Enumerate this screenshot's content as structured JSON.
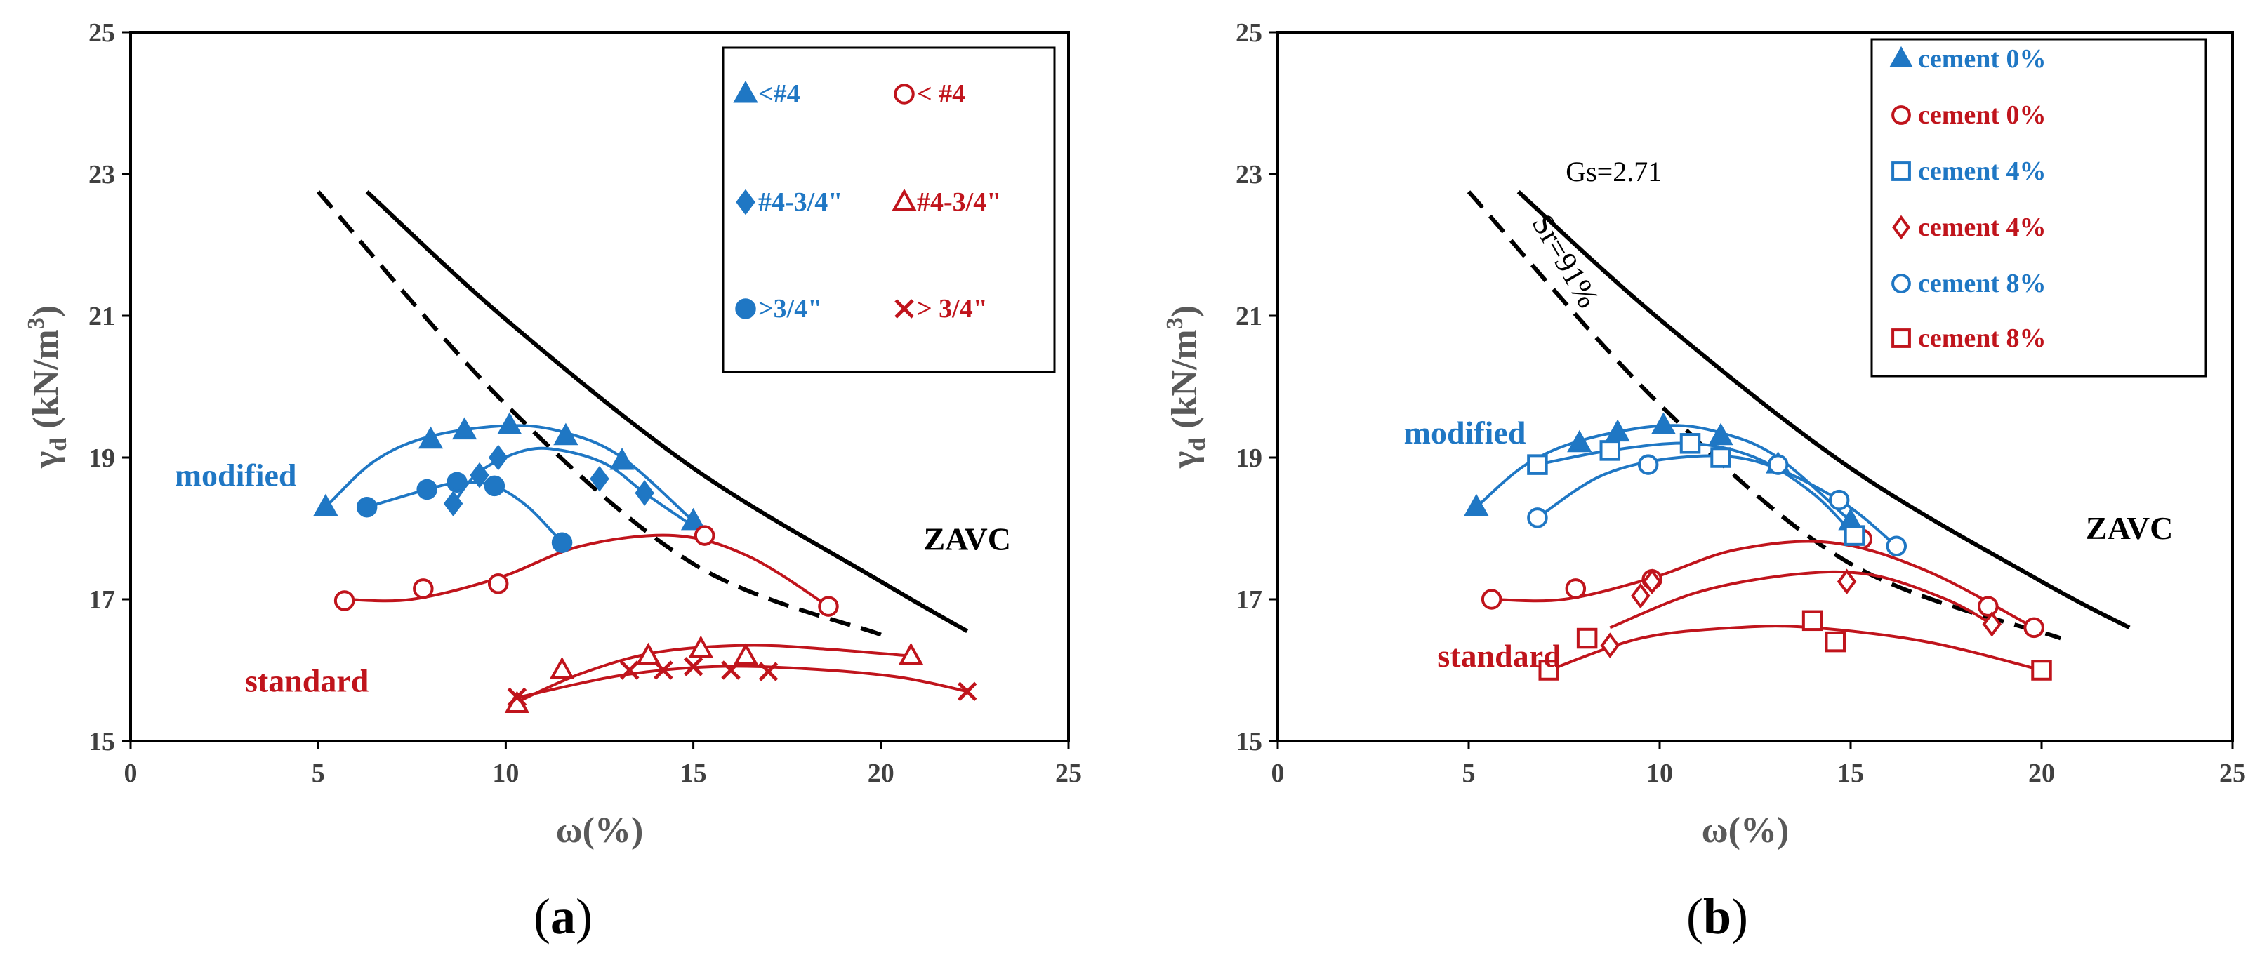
{
  "chart_data": [
    {
      "id": "a",
      "type": "scatter",
      "panel_label": "(a)",
      "panel_letter": "a",
      "xlabel": "ω(%)",
      "ylabel": "γd (kN/m³)",
      "ylabel_main": "γ",
      "ylabel_sub": "d",
      "ylabel_rest": " (kN/m",
      "ylabel_sup": "3",
      "ylabel_close": ")",
      "xlim": [
        0,
        25
      ],
      "ylim": [
        15,
        25
      ],
      "xticks": [
        0,
        5,
        10,
        15,
        20,
        25
      ],
      "yticks": [
        15,
        17,
        19,
        21,
        23,
        25
      ],
      "grid": false,
      "legend_position": "top-right",
      "annotations": [
        {
          "text": "modified",
          "x": 2.8,
          "y": 18.6,
          "color": "#1f77c4"
        },
        {
          "text": "standard",
          "x": 4.7,
          "y": 15.7,
          "color": "#c0141c"
        },
        {
          "text": "ZAVC",
          "x": 22.3,
          "y": 17.7,
          "color": "#000000"
        }
      ],
      "reference_lines": [
        {
          "name": "ZAVC",
          "style": "solid",
          "points": [
            [
              6.3,
              22.75
            ],
            [
              10,
              20.95
            ],
            [
              15,
              18.85
            ],
            [
              20,
              17.25
            ],
            [
              22.3,
              16.55
            ]
          ]
        },
        {
          "name": "Sr",
          "style": "dashed",
          "points": [
            [
              5.0,
              22.75
            ],
            [
              10,
              19.75
            ],
            [
              15,
              17.5
            ],
            [
              20.0,
              16.5
            ]
          ]
        }
      ],
      "series": [
        {
          "name": "<#4",
          "label": "<#4",
          "marker": "triangle-filled",
          "color": "#1f77c4",
          "points": [
            [
              5.2,
              18.3
            ],
            [
              8.0,
              19.25
            ],
            [
              8.9,
              19.38
            ],
            [
              10.1,
              19.45
            ],
            [
              11.6,
              19.3
            ],
            [
              13.1,
              18.95
            ],
            [
              15.0,
              18.1
            ]
          ],
          "curve": [
            [
              5.2,
              18.3
            ],
            [
              6.5,
              18.95
            ],
            [
              8.0,
              19.3
            ],
            [
              10.1,
              19.45
            ],
            [
              11.6,
              19.35
            ],
            [
              13.1,
              19.0
            ],
            [
              15.0,
              18.1
            ]
          ]
        },
        {
          "name": "#4-3/4\"",
          "label": "#4-3/4\"",
          "marker": "diamond-filled",
          "color": "#1f77c4",
          "points": [
            [
              8.6,
              18.35
            ],
            [
              9.3,
              18.75
            ],
            [
              9.8,
              19.0
            ],
            [
              12.5,
              18.7
            ],
            [
              13.7,
              18.5
            ]
          ],
          "curve": [
            [
              8.6,
              18.35
            ],
            [
              9.3,
              18.8
            ],
            [
              10.5,
              19.1
            ],
            [
              11.5,
              19.1
            ],
            [
              12.7,
              18.9
            ],
            [
              13.7,
              18.5
            ],
            [
              14.8,
              18.1
            ]
          ]
        },
        {
          "name": ">3/4\"",
          "label": ">3/4\"",
          "marker": "circle-filled",
          "color": "#1f77c4",
          "points": [
            [
              6.3,
              18.3
            ],
            [
              7.9,
              18.55
            ],
            [
              8.7,
              18.65
            ],
            [
              9.7,
              18.6
            ],
            [
              11.5,
              17.8
            ]
          ],
          "curve": [
            [
              6.3,
              18.3
            ],
            [
              7.9,
              18.55
            ],
            [
              8.8,
              18.65
            ],
            [
              9.7,
              18.6
            ],
            [
              10.6,
              18.3
            ],
            [
              11.5,
              17.8
            ]
          ]
        },
        {
          "name": "< #4",
          "label": "< #4",
          "marker": "circle-open",
          "color": "#c0141c",
          "points": [
            [
              5.7,
              16.98
            ],
            [
              7.8,
              17.15
            ],
            [
              9.8,
              17.22
            ],
            [
              15.3,
              17.9
            ],
            [
              18.6,
              16.9
            ]
          ],
          "curve": [
            [
              5.7,
              17.0
            ],
            [
              7.5,
              17.0
            ],
            [
              9.8,
              17.3
            ],
            [
              12.0,
              17.75
            ],
            [
              14.5,
              17.9
            ],
            [
              16.5,
              17.6
            ],
            [
              18.6,
              16.9
            ]
          ]
        },
        {
          "name": "#4-3/4\"",
          "label": "#4-3/4\"",
          "marker": "triangle-open",
          "color": "#c0141c",
          "points": [
            [
              10.3,
              15.52
            ],
            [
              11.5,
              16.0
            ],
            [
              13.8,
              16.2
            ],
            [
              15.2,
              16.3
            ],
            [
              16.4,
              16.2
            ],
            [
              20.8,
              16.2
            ]
          ],
          "curve": [
            [
              10.3,
              15.55
            ],
            [
              12.0,
              15.95
            ],
            [
              14.0,
              16.25
            ],
            [
              16.4,
              16.35
            ],
            [
              18.5,
              16.3
            ],
            [
              20.8,
              16.2
            ]
          ]
        },
        {
          "name": "> 3/4\"",
          "label": "> 3/4\"",
          "marker": "x",
          "color": "#c0141c",
          "points": [
            [
              10.3,
              15.62
            ],
            [
              13.3,
              16.0
            ],
            [
              14.2,
              16.0
            ],
            [
              15.0,
              16.05
            ],
            [
              16.0,
              16.0
            ],
            [
              17.0,
              15.98
            ],
            [
              22.3,
              15.7
            ]
          ],
          "curve": [
            [
              10.2,
              15.6
            ],
            [
              13.0,
              15.92
            ],
            [
              15.5,
              16.05
            ],
            [
              18.0,
              16.02
            ],
            [
              20.5,
              15.9
            ],
            [
              22.3,
              15.7
            ]
          ]
        }
      ]
    },
    {
      "id": "b",
      "type": "scatter",
      "panel_label": "(b)",
      "panel_letter": "b",
      "xlabel": "ω(%)",
      "ylabel": "γd (kN/m³)",
      "ylabel_main": "γ",
      "ylabel_sub": "d",
      "ylabel_rest": " (kN/m",
      "ylabel_sup": "3",
      "ylabel_close": ")",
      "xlim": [
        0,
        25
      ],
      "ylim": [
        15,
        25
      ],
      "xticks": [
        0,
        5,
        10,
        15,
        20,
        25
      ],
      "yticks": [
        15,
        17,
        19,
        21,
        23,
        25
      ],
      "grid": false,
      "legend_position": "top-right",
      "annotations": [
        {
          "text": "modified",
          "x": 4.9,
          "y": 19.2,
          "color": "#1f77c4"
        },
        {
          "text": "standard",
          "x": 5.8,
          "y": 16.05,
          "color": "#c0141c"
        },
        {
          "text": "ZAVC",
          "x": 22.3,
          "y": 17.85,
          "color": "#000000"
        },
        {
          "text": "Gs=2.71",
          "x": 8.8,
          "y": 22.9,
          "color": "#000000"
        },
        {
          "text": "Sr=91%",
          "x": 7.3,
          "y": 21.7,
          "color": "#000000"
        }
      ],
      "reference_lines": [
        {
          "name": "ZAVC",
          "style": "solid",
          "points": [
            [
              6.3,
              22.75
            ],
            [
              10,
              20.95
            ],
            [
              15,
              18.85
            ],
            [
              20,
              17.25
            ],
            [
              22.3,
              16.6
            ]
          ]
        },
        {
          "name": "Sr",
          "style": "dashed",
          "points": [
            [
              5.0,
              22.75
            ],
            [
              10,
              19.75
            ],
            [
              15,
              17.5
            ],
            [
              20.5,
              16.45
            ]
          ]
        }
      ],
      "series": [
        {
          "name": "cement 0%",
          "label": "cement 0%",
          "marker": "triangle-filled",
          "color": "#1f77c4",
          "points": [
            [
              5.2,
              18.3
            ],
            [
              7.9,
              19.2
            ],
            [
              8.9,
              19.35
            ],
            [
              10.1,
              19.45
            ],
            [
              11.6,
              19.3
            ],
            [
              13.1,
              18.9
            ],
            [
              15.0,
              18.1
            ]
          ],
          "curve": [
            [
              5.2,
              18.3
            ],
            [
              6.5,
              18.9
            ],
            [
              8.0,
              19.25
            ],
            [
              10.1,
              19.45
            ],
            [
              11.6,
              19.35
            ],
            [
              13.1,
              19.0
            ],
            [
              15.0,
              18.1
            ]
          ]
        },
        {
          "name": "cement 0%",
          "label": "cement 0%",
          "marker": "circle-open",
          "color": "#c0141c",
          "points": [
            [
              5.6,
              17.0
            ],
            [
              7.8,
              17.15
            ],
            [
              9.8,
              17.28
            ],
            [
              15.3,
              17.85
            ],
            [
              18.6,
              16.9
            ],
            [
              19.8,
              16.6
            ]
          ],
          "curve": [
            [
              5.6,
              17.0
            ],
            [
              7.5,
              17.0
            ],
            [
              9.8,
              17.3
            ],
            [
              12.0,
              17.7
            ],
            [
              14.5,
              17.8
            ],
            [
              17.0,
              17.4
            ],
            [
              19.8,
              16.6
            ]
          ]
        },
        {
          "name": "cement 4%",
          "label": "cement 4%",
          "marker": "square-open",
          "color": "#1f77c4",
          "points": [
            [
              6.8,
              18.9
            ],
            [
              8.7,
              19.1
            ],
            [
              10.8,
              19.2
            ],
            [
              11.6,
              19.0
            ],
            [
              15.1,
              17.9
            ]
          ],
          "curve": [
            [
              6.8,
              18.9
            ],
            [
              8.7,
              19.1
            ],
            [
              10.8,
              19.2
            ],
            [
              12.5,
              19.0
            ],
            [
              14.0,
              18.5
            ],
            [
              15.1,
              17.9
            ]
          ]
        },
        {
          "name": "cement 4%",
          "label": "cement 4%",
          "marker": "diamond-open",
          "color": "#c0141c",
          "points": [
            [
              8.7,
              16.35
            ],
            [
              9.5,
              17.05
            ],
            [
              9.8,
              17.25
            ],
            [
              14.9,
              17.25
            ],
            [
              18.7,
              16.65
            ]
          ],
          "curve": [
            [
              8.7,
              16.6
            ],
            [
              11.0,
              17.1
            ],
            [
              13.5,
              17.35
            ],
            [
              15.5,
              17.35
            ],
            [
              17.5,
              17.0
            ],
            [
              18.7,
              16.65
            ]
          ]
        },
        {
          "name": "cement 8%",
          "label": "cement 8%",
          "marker": "circle-open",
          "color": "#1f77c4",
          "points": [
            [
              6.8,
              18.15
            ],
            [
              9.7,
              18.9
            ],
            [
              13.1,
              18.9
            ],
            [
              14.7,
              18.4
            ],
            [
              16.2,
              17.75
            ]
          ],
          "curve": [
            [
              6.8,
              18.15
            ],
            [
              8.5,
              18.75
            ],
            [
              10.5,
              19.0
            ],
            [
              12.5,
              18.95
            ],
            [
              14.7,
              18.4
            ],
            [
              16.2,
              17.75
            ]
          ]
        },
        {
          "name": "cement 8%",
          "label": "cement 8%",
          "marker": "square-open",
          "color": "#c0141c",
          "points": [
            [
              7.1,
              16.0
            ],
            [
              8.1,
              16.45
            ],
            [
              14.0,
              16.7
            ],
            [
              14.6,
              16.4
            ],
            [
              20.0,
              16.0
            ]
          ],
          "curve": [
            [
              7.1,
              16.0
            ],
            [
              9.5,
              16.45
            ],
            [
              12.0,
              16.6
            ],
            [
              14.0,
              16.6
            ],
            [
              17.0,
              16.4
            ],
            [
              20.0,
              16.0
            ]
          ]
        }
      ]
    }
  ]
}
